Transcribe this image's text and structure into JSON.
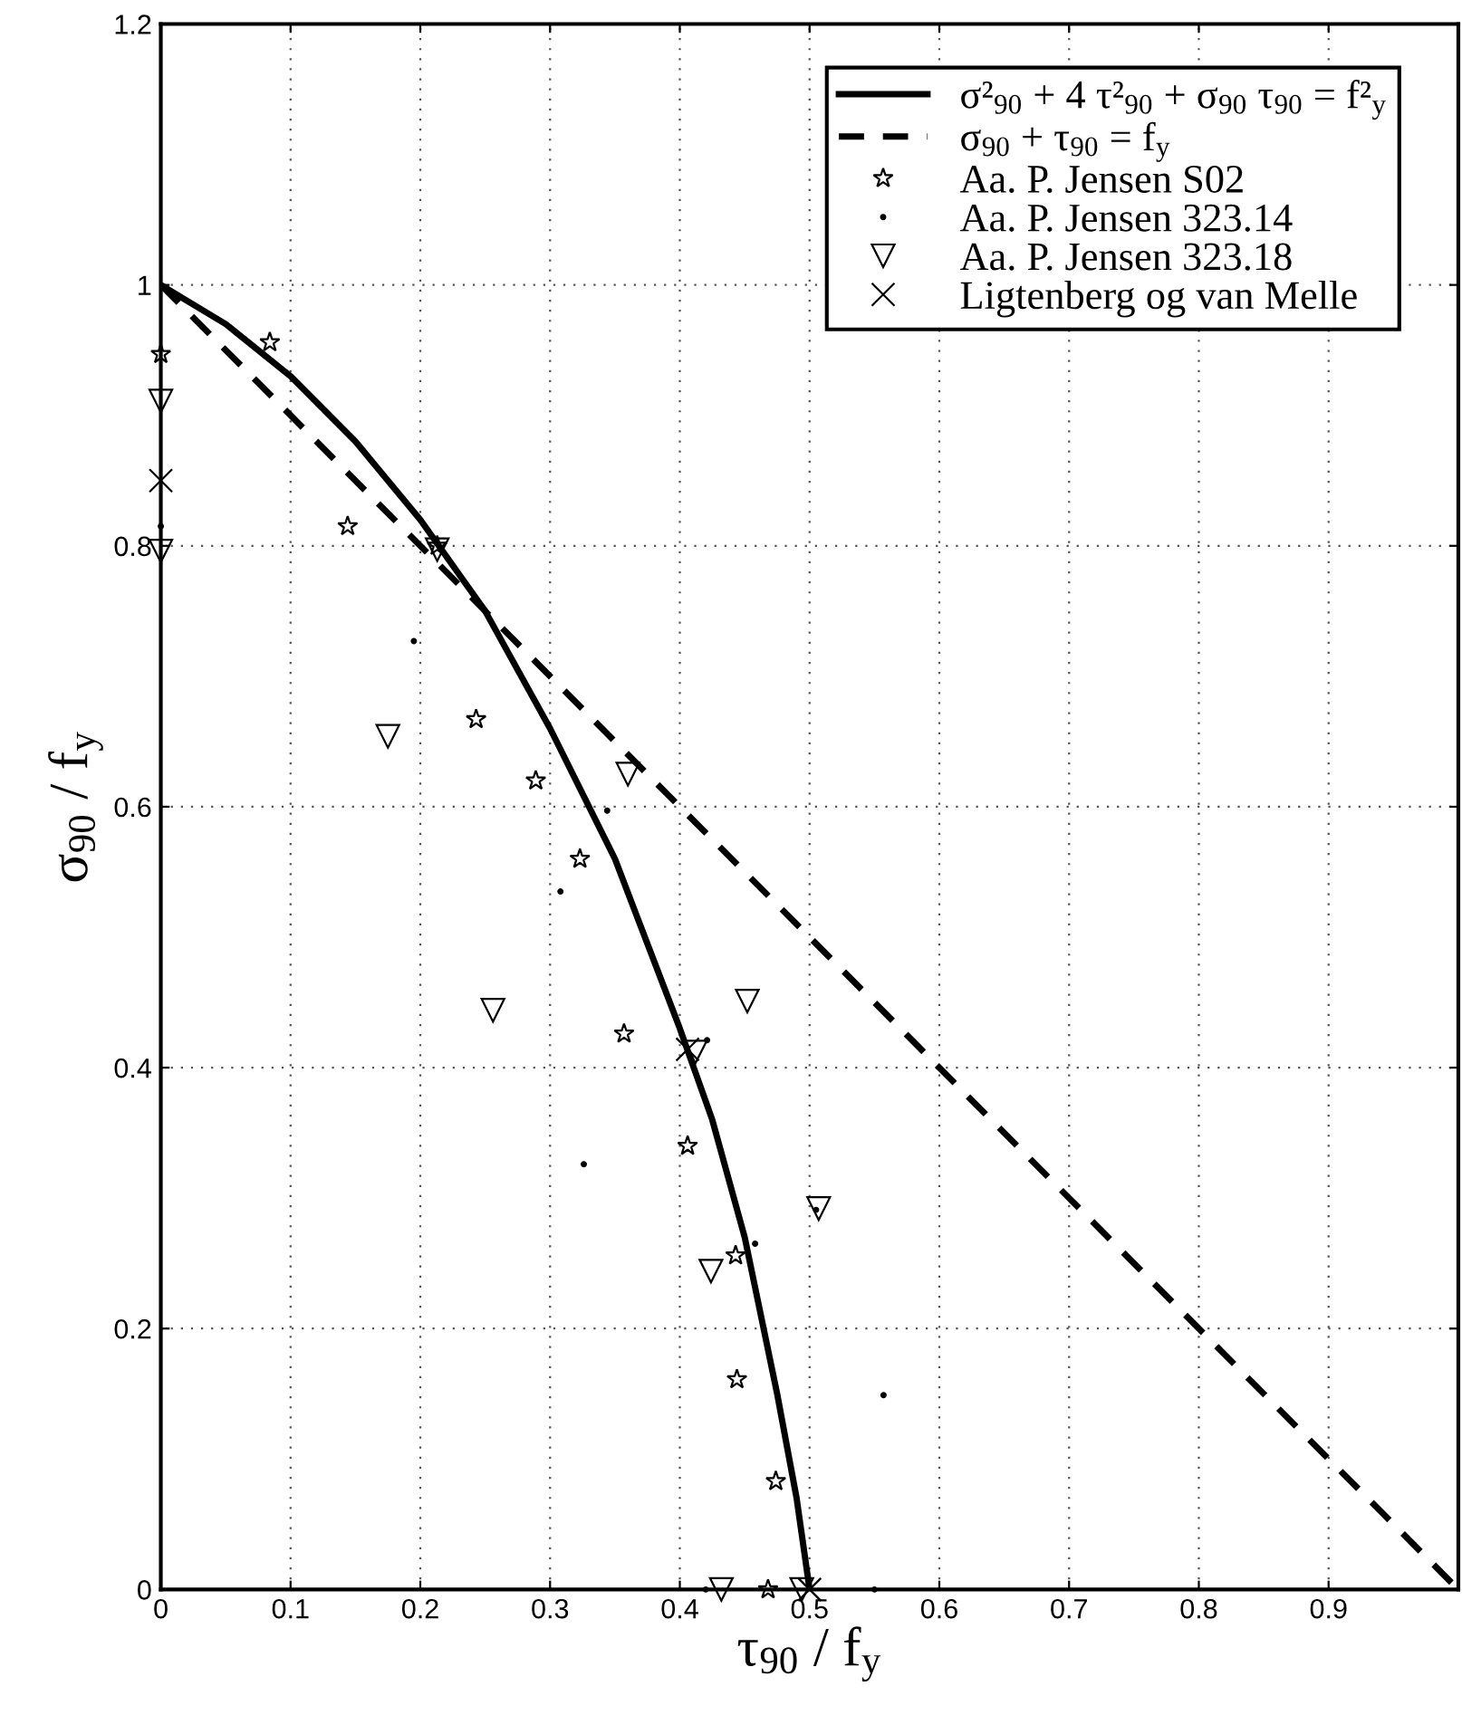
{
  "chart_data": {
    "type": "scatter",
    "xlabel": "τ$_{90}$ / f$_{y}$",
    "ylabel": "σ$_{90}$ / f$_{y}$",
    "xlim": [
      0,
      1
    ],
    "xticks": [
      0,
      0.1,
      0.2,
      0.3,
      0.4,
      0.5,
      0.6,
      0.7,
      0.8,
      0.9,
      {
        "value": 1,
        "label": null
      }
    ],
    "ylim": [
      0,
      1.2
    ],
    "yticks": [
      0,
      0.2,
      0.4,
      0.6,
      0.8,
      1,
      1.2
    ],
    "grid": true,
    "legend": "top right",
    "series": [
      {
        "name": "σ²$_{90}$ + 4 τ²$_{90}$ + σ$_{90}$ τ$_{90}$ = f²$_{y}$",
        "type": "line",
        "line_style": "solid",
        "marker": "none",
        "color": "#000000",
        "x": [
          0,
          0.05,
          0.1,
          0.15,
          0.2,
          0.25,
          0.3,
          0.35,
          0.4,
          0.425,
          0.45,
          0.475,
          0.49,
          0.5
        ],
        "values": [
          1,
          0.97,
          0.93,
          0.88,
          0.82,
          0.75,
          0.66,
          0.56,
          0.43,
          0.36,
          0.27,
          0.15,
          0.07,
          0
        ]
      },
      {
        "name": "σ$_{90}$ + τ$_{90}$ = f$_{y}$",
        "type": "line",
        "line_style": "dashed",
        "marker": "none",
        "color": "#000000",
        "x": [
          0,
          1
        ],
        "values": [
          1,
          0
        ]
      },
      {
        "name": "Aa. P. Jensen S02",
        "marker": "star",
        "color": "#000000",
        "x": [
          0,
          0.084,
          0.144,
          0.213,
          0.243,
          0.289,
          0.323,
          0.357,
          0.406,
          0.443,
          0.444,
          0.474,
          0.468
        ],
        "values": [
          0.947,
          0.956,
          0.815,
          0.8,
          0.667,
          0.62,
          0.56,
          0.426,
          0.34,
          0.256,
          0.161,
          0.083,
          0
        ]
      },
      {
        "name": "Aa. P. Jensen 323.14",
        "marker": "circle",
        "color": "#000000",
        "x": [
          0,
          0.195,
          0.344,
          0.308,
          0.326,
          0.421,
          0.458,
          0.505,
          0.557,
          0.42,
          0.55
        ],
        "values": [
          0.815,
          0.727,
          0.597,
          0.535,
          0.326,
          0.421,
          0.265,
          0.291,
          0.149,
          0,
          0
        ]
      },
      {
        "name": "Aa. P. Jensen 323.18",
        "marker": "triangle",
        "color": "#000000",
        "x": [
          0,
          0,
          0.213,
          0.175,
          0.36,
          0.256,
          0.452,
          0.412,
          0.507,
          0.424,
          0.432,
          0.494
        ],
        "values": [
          0.911,
          0.796,
          0.797,
          0.654,
          0.625,
          0.444,
          0.451,
          0.412,
          0.292,
          0.244,
          0,
          0
        ]
      },
      {
        "name": "Ligtenberg og van Melle",
        "marker": "cross",
        "color": "#000000",
        "x": [
          0,
          0.406,
          0.5
        ],
        "values": [
          0.85,
          0.414,
          0
        ]
      }
    ]
  }
}
